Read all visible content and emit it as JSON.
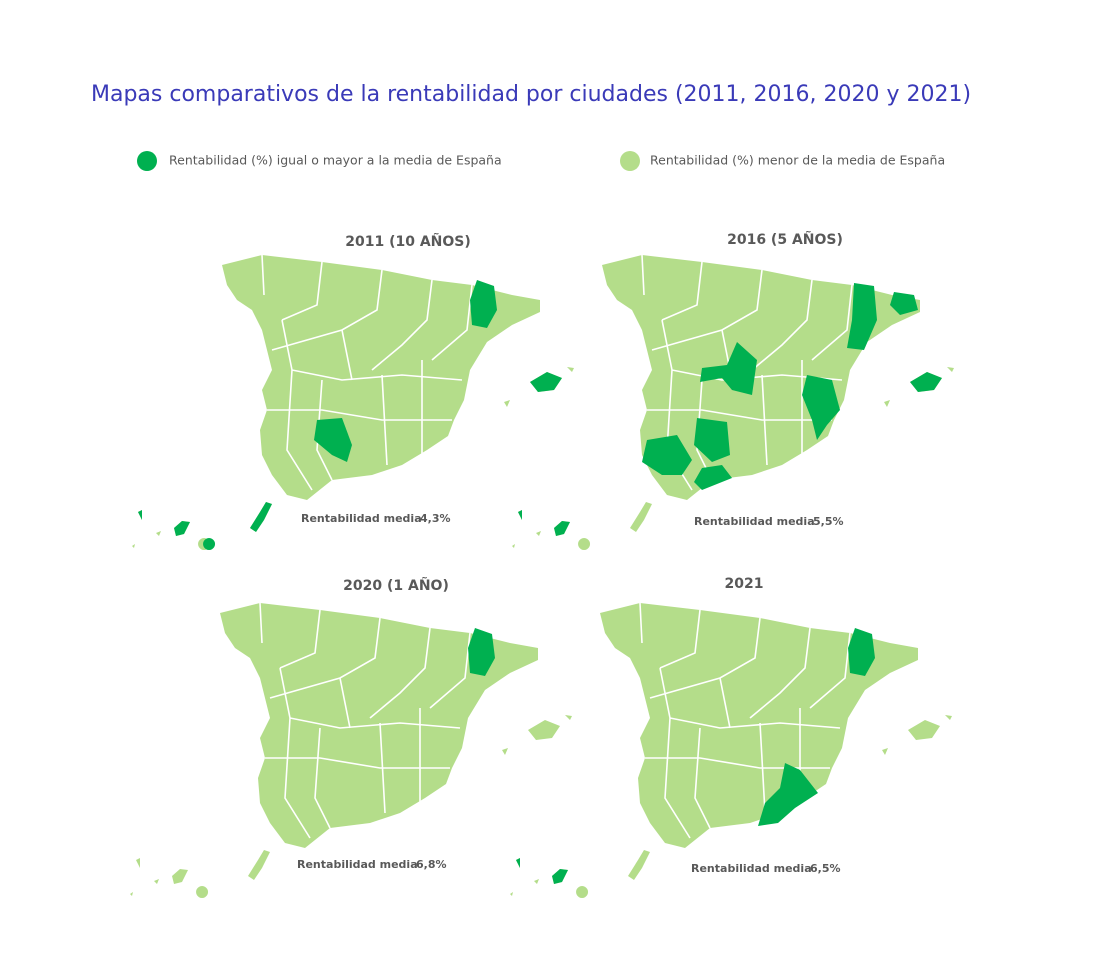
{
  "title": "Mapas comparativos de la rentabilidad por ciudades (2011, 2016, 2020 y 2021)",
  "legend": [
    {
      "label": "Rentabilidad (%) igual o mayor a la media de España",
      "color": "#00b050"
    },
    {
      "label": "Rentabilidad (%) menor de la media de España",
      "color": "#b4dd8a"
    }
  ],
  "maps": [
    {
      "title": "2011 (10 AÑOS)",
      "label": "Rentabilidad media",
      "value": "4,3%"
    },
    {
      "title": "2016 (5 AÑOS)",
      "label": "Rentabilidad media",
      "value": "5,5%"
    },
    {
      "title": "2020 (1 AÑO)",
      "label": "Rentabilidad media",
      "value": "6,8%"
    },
    {
      "title": "2021",
      "label": "Rentabilidad media",
      "value": "6,5%"
    }
  ]
}
